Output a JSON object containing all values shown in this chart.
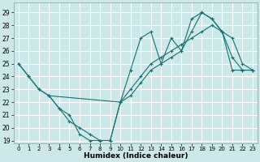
{
  "xlabel": "Humidex (Indice chaleur)",
  "background_color": "#cce8e8",
  "grid_color": "#ffffff",
  "line_color": "#1a7070",
  "xlim": [
    -0.5,
    23.5
  ],
  "ylim": [
    18.8,
    29.8
  ],
  "xticks": [
    0,
    1,
    2,
    3,
    4,
    5,
    6,
    7,
    8,
    9,
    10,
    11,
    12,
    13,
    14,
    15,
    16,
    17,
    18,
    19,
    20,
    21,
    22,
    23
  ],
  "yticks": [
    19,
    20,
    21,
    22,
    23,
    24,
    25,
    26,
    27,
    28,
    29
  ],
  "curve1_x": [
    0,
    1,
    2,
    3,
    10,
    11,
    12,
    13,
    14,
    15,
    16,
    17,
    18,
    19,
    20,
    21,
    22,
    23
  ],
  "curve1_y": [
    25.0,
    24.0,
    23.0,
    22.5,
    22.0,
    24.5,
    27.0,
    27.5,
    25.0,
    27.0,
    26.0,
    28.5,
    29.0,
    28.5,
    27.5,
    27.0,
    25.0,
    24.5
  ],
  "curve2_x": [
    3,
    4,
    5,
    6,
    7,
    8,
    9,
    10,
    11,
    12,
    13,
    14,
    15,
    16,
    17,
    18,
    19,
    20,
    21,
    22,
    23
  ],
  "curve2_y": [
    22.5,
    21.5,
    20.5,
    20.0,
    19.5,
    19.0,
    19.0,
    22.0,
    22.5,
    23.5,
    24.5,
    25.0,
    25.5,
    26.0,
    27.5,
    29.0,
    28.5,
    27.5,
    25.5,
    24.5,
    24.5
  ],
  "curve3_x": [
    0,
    1,
    2,
    3,
    4,
    5,
    6,
    7,
    8,
    9,
    10,
    11,
    12,
    13,
    14,
    15,
    16,
    17,
    18,
    19,
    20,
    21,
    22,
    23
  ],
  "curve3_y": [
    25.0,
    24.0,
    23.0,
    22.5,
    21.5,
    21.0,
    19.5,
    19.0,
    19.0,
    19.0,
    22.0,
    23.0,
    24.0,
    25.0,
    25.5,
    26.0,
    26.5,
    27.0,
    27.5,
    28.0,
    27.5,
    24.5,
    24.5,
    24.5
  ]
}
